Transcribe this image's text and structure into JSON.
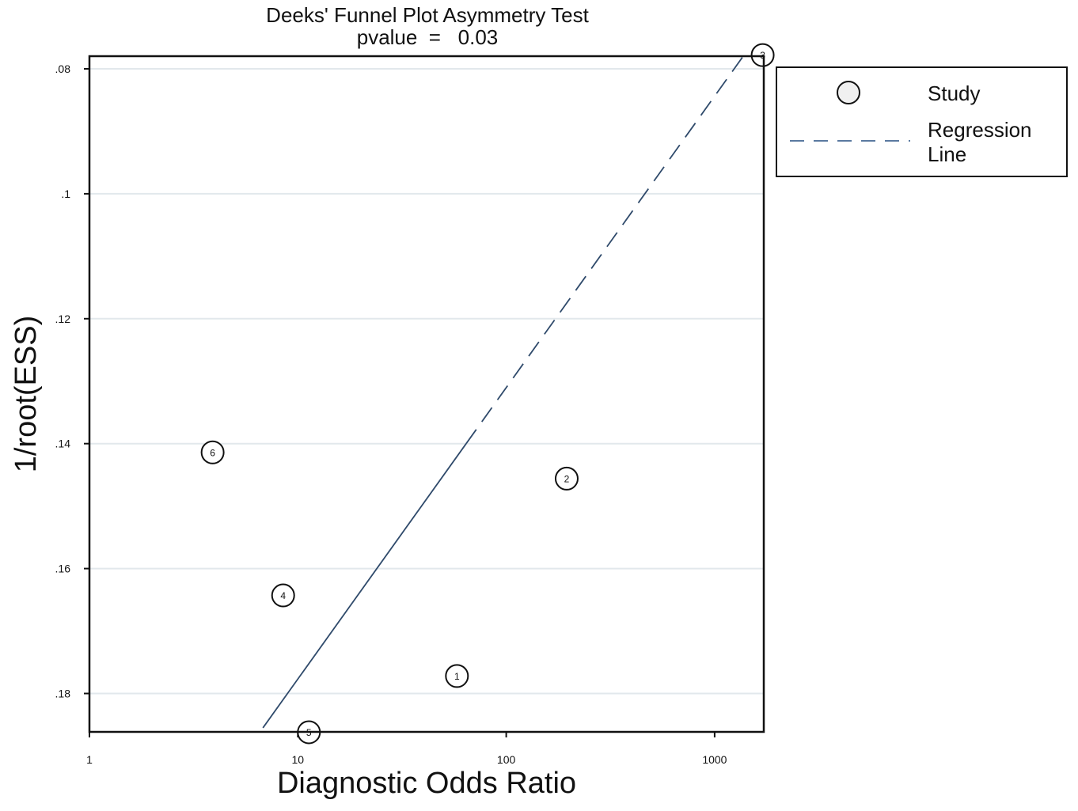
{
  "chart_data": {
    "type": "scatter",
    "title": "Deeks' Funnel Plot Asymmetry Test",
    "subtitle": "pvalue  =   0.03",
    "xlabel": "Diagnostic Odds Ratio",
    "ylabel": "1/root(ESS)",
    "x_scale": "log",
    "xlim": [
      1,
      1700
    ],
    "ylim": [
      0.186,
      0.078
    ],
    "y_axis_inverted": true,
    "x_ticks": [
      1,
      10,
      100,
      1000
    ],
    "x_tick_labels": [
      "1",
      "10",
      "100",
      "1000"
    ],
    "y_ticks": [
      0.08,
      0.1,
      0.12,
      0.14,
      0.16,
      0.18
    ],
    "y_tick_labels": [
      ".08",
      ".1",
      ".12",
      ".14",
      ".16",
      ".18"
    ],
    "grid": "horizontal",
    "legend_position": "right",
    "series": [
      {
        "name": "Study",
        "kind": "points",
        "points": [
          {
            "label": "1",
            "x": 58,
            "y": 0.1772
          },
          {
            "label": "2",
            "x": 195,
            "y": 0.1456
          },
          {
            "label": "3",
            "x": 1700,
            "y": 0.0778
          },
          {
            "label": "4",
            "x": 8.5,
            "y": 0.1643
          },
          {
            "label": "5",
            "x": 11.3,
            "y": 0.1862
          },
          {
            "label": "6",
            "x": 3.9,
            "y": 0.1414
          }
        ]
      },
      {
        "name": "Regression Line",
        "legend_label_lines": [
          "Regression",
          "Line"
        ],
        "kind": "line",
        "points": [
          {
            "x": 6.8,
            "y": 0.1855
          },
          {
            "x": 1390,
            "y": 0.0777
          }
        ],
        "solid_until_y": 0.14,
        "color": "#2f4a6b"
      }
    ]
  }
}
